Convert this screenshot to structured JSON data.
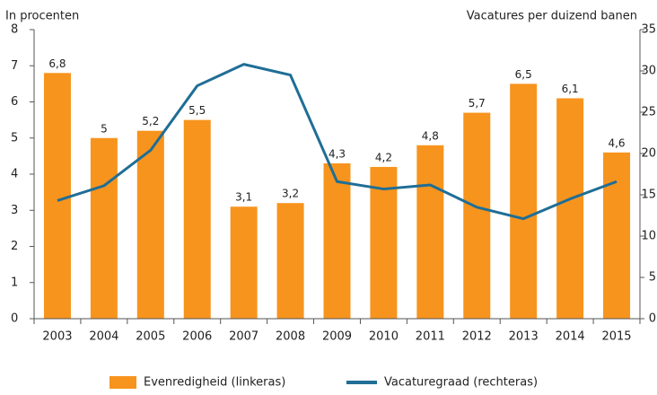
{
  "chart_data": {
    "type": "bar",
    "ylabel": "In procenten",
    "y2label": "Vacatures per duizend banen",
    "categories": [
      "2003",
      "2004",
      "2005",
      "2006",
      "2007",
      "2008",
      "2009",
      "2010",
      "2011",
      "2012",
      "2013",
      "2014",
      "2015"
    ],
    "series": [
      {
        "name": "Evenredigheid (linkeras)",
        "type": "bar",
        "color": "#f7941d",
        "values": [
          6.8,
          5,
          5.2,
          5.5,
          3.1,
          3.2,
          4.3,
          4.2,
          4.8,
          5.7,
          6.5,
          6.1,
          4.6
        ],
        "value_labels": [
          "6,8",
          "5",
          "5,2",
          "5,5",
          "3,1",
          "3,2",
          "4,3",
          "4,2",
          "4,8",
          "5,7",
          "6,5",
          "6,1",
          "4,6"
        ]
      },
      {
        "name": "Vacaturegraad (rechteras)",
        "type": "line",
        "axis": "y2",
        "color": "#1f6e96",
        "values": [
          14.3,
          16.1,
          20.4,
          28.2,
          30.8,
          29.5,
          16.6,
          15.7,
          16.2,
          13.5,
          12.1,
          14.5,
          16.6
        ]
      }
    ],
    "ylim": [
      0,
      8
    ],
    "yticks": [
      0,
      1,
      2,
      3,
      4,
      5,
      6,
      7,
      8
    ],
    "y2lim": [
      0,
      35
    ],
    "y2ticks": [
      0,
      5,
      10,
      15,
      20,
      25,
      30,
      35
    ],
    "legend": "bottom"
  }
}
